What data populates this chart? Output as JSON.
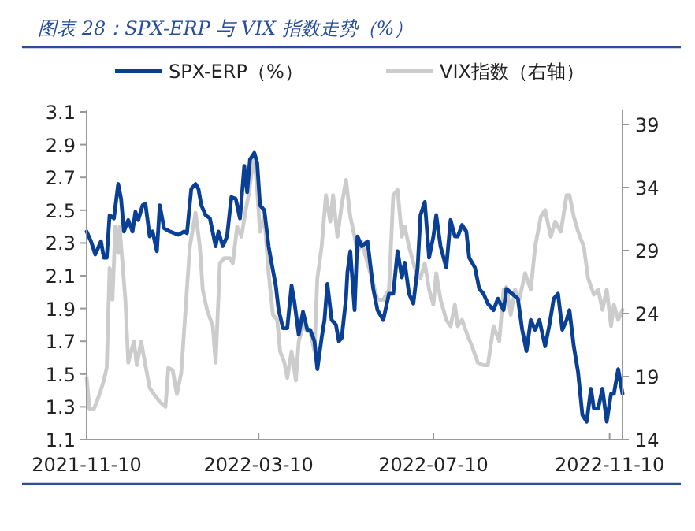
{
  "chart_data": {
    "type": "line",
    "title": "图表 28：SPX-ERP 与 VIX 指数走势（%）",
    "xlim": [
      "2021-11-10",
      "2022-11-19"
    ],
    "xticks": [
      "2021-11-10",
      "2022-03-10",
      "2022-07-10",
      "2022-11-10"
    ],
    "ylim": [
      1.1,
      3.1
    ],
    "yticks": [
      1.1,
      1.3,
      1.5,
      1.7,
      1.9,
      2.1,
      2.3,
      2.5,
      2.7,
      2.9,
      3.1
    ],
    "y2lim": [
      14,
      40
    ],
    "y2ticks": [
      14,
      19,
      24,
      29,
      34,
      39
    ],
    "grid": false,
    "legend": "top",
    "marker": "none",
    "line_style": "solid",
    "series": [
      {
        "name": "VIX指数（右轴）",
        "color": "#cccccc",
        "axis": "y2",
        "x": [
          "2021-11-10",
          "2021-11-12",
          "2021-11-15",
          "2021-11-19",
          "2021-11-22",
          "2021-11-24",
          "2021-11-26",
          "2021-11-28",
          "2021-11-30",
          "2021-12-02",
          "2021-12-03",
          "2021-12-05",
          "2021-12-07",
          "2021-12-09",
          "2021-12-13",
          "2021-12-15",
          "2021-12-18",
          "2021-12-21",
          "2021-12-24",
          "2021-12-27",
          "2021-12-31",
          "2022-01-04",
          "2022-01-06",
          "2022-01-09",
          "2022-01-12",
          "2022-01-15",
          "2022-01-18",
          "2022-01-21",
          "2022-01-25",
          "2022-01-28",
          "2022-01-30",
          "2022-02-02",
          "2022-02-06",
          "2022-02-08",
          "2022-02-11",
          "2022-02-14",
          "2022-02-18",
          "2022-02-20",
          "2022-02-23",
          "2022-02-26",
          "2022-03-01",
          "2022-03-03",
          "2022-03-05",
          "2022-03-07",
          "2022-03-09",
          "2022-03-11",
          "2022-03-14",
          "2022-03-17",
          "2022-03-20",
          "2022-03-23",
          "2022-03-25",
          "2022-03-28",
          "2022-03-30",
          "2022-04-02",
          "2022-04-05",
          "2022-04-07",
          "2022-04-10",
          "2022-04-13",
          "2022-04-15",
          "2022-04-18",
          "2022-04-20",
          "2022-04-23",
          "2022-04-26",
          "2022-04-29",
          "2022-05-01",
          "2022-05-04",
          "2022-05-07",
          "2022-05-10",
          "2022-05-13",
          "2022-05-16",
          "2022-05-18",
          "2022-05-21",
          "2022-05-25",
          "2022-05-29",
          "2022-06-01",
          "2022-06-05",
          "2022-06-09",
          "2022-06-12",
          "2022-06-15",
          "2022-06-18",
          "2022-06-20",
          "2022-06-23",
          "2022-06-27",
          "2022-07-01",
          "2022-07-04",
          "2022-07-07",
          "2022-07-10",
          "2022-07-12",
          "2022-07-15",
          "2022-07-19",
          "2022-07-22",
          "2022-07-25",
          "2022-07-27",
          "2022-07-30",
          "2022-08-03",
          "2022-08-06",
          "2022-08-10",
          "2022-08-14",
          "2022-08-17",
          "2022-08-21",
          "2022-08-25",
          "2022-08-28",
          "2022-08-30",
          "2022-09-02",
          "2022-09-05",
          "2022-09-08",
          "2022-09-12",
          "2022-09-16",
          "2022-09-19",
          "2022-09-23",
          "2022-09-26",
          "2022-09-30",
          "2022-10-03",
          "2022-10-07",
          "2022-10-11",
          "2022-10-13",
          "2022-10-16",
          "2022-10-19",
          "2022-10-23",
          "2022-10-26",
          "2022-10-30",
          "2022-11-02",
          "2022-11-05",
          "2022-11-08",
          "2022-11-11",
          "2022-11-13",
          "2022-11-16",
          "2022-11-19"
        ],
        "values": [
          18.9,
          16.4,
          16.4,
          17.6,
          18.7,
          19.7,
          27.6,
          25.1,
          30.9,
          28.8,
          30.9,
          28.0,
          25.1,
          20.1,
          21.8,
          19.9,
          21.8,
          19.9,
          18.1,
          17.6,
          17.0,
          16.6,
          19.7,
          19.5,
          17.6,
          19.3,
          24.3,
          29.3,
          32.0,
          29.3,
          25.9,
          24.3,
          23.0,
          20.1,
          28.0,
          28.4,
          28.4,
          28.0,
          30.9,
          30.1,
          32.2,
          33.4,
          35.1,
          36.3,
          33.8,
          30.5,
          31.7,
          27.2,
          23.9,
          23.5,
          21.0,
          20.1,
          18.9,
          21.0,
          18.7,
          21.8,
          23.0,
          22.6,
          22.6,
          21.0,
          26.8,
          29.3,
          33.4,
          31.3,
          33.4,
          30.1,
          32.6,
          34.6,
          31.7,
          30.1,
          28.8,
          29.7,
          28.0,
          26.4,
          25.1,
          25.1,
          25.9,
          33.4,
          33.8,
          30.1,
          30.9,
          29.3,
          27.6,
          26.8,
          28.0,
          25.9,
          24.7,
          27.2,
          25.1,
          23.5,
          23.0,
          24.7,
          23.0,
          23.5,
          22.2,
          21.4,
          20.1,
          19.9,
          19.9,
          23.0,
          21.8,
          25.9,
          26.1,
          23.9,
          25.9,
          25.1,
          27.2,
          25.9,
          29.3,
          31.7,
          32.2,
          30.1,
          31.3,
          30.5,
          33.4,
          33.4,
          31.7,
          30.5,
          29.3,
          26.8,
          25.5,
          25.9,
          24.3,
          25.9,
          23.0,
          24.7,
          23.5,
          24.3
        ]
      },
      {
        "name": "SPX-ERP（%）",
        "color": "#0a3f96",
        "x": [
          "2021-11-10",
          "2021-11-13",
          "2021-11-16",
          "2021-11-20",
          "2021-11-22",
          "2021-11-24",
          "2021-11-26",
          "2021-11-29",
          "2021-12-02",
          "2021-12-04",
          "2021-12-06",
          "2021-12-09",
          "2021-12-12",
          "2021-12-14",
          "2021-12-16",
          "2021-12-19",
          "2021-12-21",
          "2021-12-24",
          "2021-12-26",
          "2021-12-29",
          "2021-12-31",
          "2022-01-03",
          "2022-01-07",
          "2022-01-13",
          "2022-01-17",
          "2022-01-19",
          "2022-01-22",
          "2022-01-25",
          "2022-01-27",
          "2022-01-29",
          "2022-02-01",
          "2022-02-04",
          "2022-02-08",
          "2022-02-10",
          "2022-02-13",
          "2022-02-16",
          "2022-02-19",
          "2022-02-22",
          "2022-02-25",
          "2022-02-28",
          "2022-03-02",
          "2022-03-04",
          "2022-03-07",
          "2022-03-09",
          "2022-03-11",
          "2022-03-14",
          "2022-03-17",
          "2022-03-19",
          "2022-03-22",
          "2022-03-24",
          "2022-03-27",
          "2022-03-30",
          "2022-04-02",
          "2022-04-04",
          "2022-04-07",
          "2022-04-10",
          "2022-04-13",
          "2022-04-15",
          "2022-04-18",
          "2022-04-20",
          "2022-04-23",
          "2022-04-25",
          "2022-04-27",
          "2022-04-30",
          "2022-05-03",
          "2022-05-05",
          "2022-05-07",
          "2022-05-10",
          "2022-05-11",
          "2022-05-13",
          "2022-05-16",
          "2022-05-18",
          "2022-05-21",
          "2022-05-25",
          "2022-05-29",
          "2022-06-01",
          "2022-06-05",
          "2022-06-09",
          "2022-06-12",
          "2022-06-15",
          "2022-06-18",
          "2022-06-20",
          "2022-06-23",
          "2022-06-26",
          "2022-06-29",
          "2022-07-01",
          "2022-07-04",
          "2022-07-07",
          "2022-07-10",
          "2022-07-12",
          "2022-07-15",
          "2022-07-19",
          "2022-07-22",
          "2022-07-25",
          "2022-07-27",
          "2022-07-30",
          "2022-08-02",
          "2022-08-04",
          "2022-08-08",
          "2022-08-11",
          "2022-08-14",
          "2022-08-17",
          "2022-08-21",
          "2022-08-24",
          "2022-08-28",
          "2022-08-30",
          "2022-09-03",
          "2022-09-07",
          "2022-09-10",
          "2022-09-13",
          "2022-09-16",
          "2022-09-19",
          "2022-09-22",
          "2022-09-26",
          "2022-09-29",
          "2022-10-02",
          "2022-10-05",
          "2022-10-08",
          "2022-10-11",
          "2022-10-13",
          "2022-10-16",
          "2022-10-19",
          "2022-10-22",
          "2022-10-25",
          "2022-10-28",
          "2022-10-30",
          "2022-11-02",
          "2022-11-05",
          "2022-11-08",
          "2022-11-11",
          "2022-11-13",
          "2022-11-16",
          "2022-11-19"
        ],
        "values": [
          2.37,
          2.31,
          2.23,
          2.31,
          2.21,
          2.21,
          2.47,
          2.45,
          2.66,
          2.57,
          2.37,
          2.44,
          2.37,
          2.49,
          2.44,
          2.53,
          2.54,
          2.34,
          2.37,
          2.25,
          2.53,
          2.39,
          2.37,
          2.35,
          2.37,
          2.36,
          2.63,
          2.66,
          2.63,
          2.53,
          2.47,
          2.45,
          2.28,
          2.37,
          2.28,
          2.34,
          2.58,
          2.57,
          2.45,
          2.77,
          2.61,
          2.81,
          2.85,
          2.79,
          2.53,
          2.5,
          2.28,
          2.18,
          2.04,
          1.89,
          1.78,
          1.78,
          2.04,
          1.94,
          1.74,
          1.88,
          1.77,
          1.77,
          1.7,
          1.53,
          1.72,
          1.83,
          2.05,
          1.83,
          1.8,
          1.7,
          1.72,
          1.96,
          2.12,
          2.25,
          1.89,
          2.34,
          2.28,
          2.31,
          2.02,
          1.89,
          1.83,
          1.99,
          1.99,
          2.25,
          2.09,
          2.18,
          1.99,
          1.93,
          2.15,
          2.47,
          2.55,
          2.21,
          2.34,
          2.47,
          2.28,
          2.15,
          2.44,
          2.34,
          2.34,
          2.41,
          2.37,
          2.21,
          2.15,
          2.02,
          1.99,
          1.93,
          1.89,
          1.96,
          1.89,
          2.02,
          1.99,
          1.96,
          1.77,
          1.64,
          1.83,
          1.77,
          1.83,
          1.67,
          1.8,
          1.96,
          1.99,
          1.77,
          1.83,
          1.89,
          1.67,
          1.51,
          1.25,
          1.21,
          1.41,
          1.29,
          1.29,
          1.41,
          1.21,
          1.38,
          1.38,
          1.53,
          1.38
        ]
      }
    ]
  }
}
